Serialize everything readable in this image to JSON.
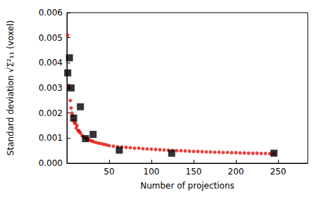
{
  "chart_data": {
    "type": "scatter",
    "x_label": "Number of projections",
    "y_label": "Standard deviation √Σ²₁₁ (voxel)",
    "xlim": [
      0,
      285
    ],
    "xticks": [
      50,
      100,
      150,
      200,
      250
    ],
    "ylim": [
      0,
      0.006
    ],
    "yticks": [
      {
        "value": 0,
        "label": "0.000"
      },
      {
        "value": 0.001,
        "label": "0.001"
      },
      {
        "value": 0.002,
        "label": "0.002"
      },
      {
        "value": 0.003,
        "label": "0.003"
      },
      {
        "value": 0.004,
        "label": "0.004"
      },
      {
        "value": 0.005,
        "label": "0.005"
      },
      {
        "value": 0.006,
        "label": "0.006"
      }
    ],
    "grid": false,
    "series": [
      {
        "color": "#e3120b",
        "marker": "circle",
        "x": [
          1,
          2,
          3,
          4,
          5,
          6,
          7,
          8,
          9,
          10,
          11,
          12,
          13,
          14,
          15,
          16,
          18,
          20,
          22,
          24,
          26,
          28,
          30,
          32,
          35,
          38,
          41,
          44,
          47,
          50,
          55,
          60,
          65,
          70,
          75,
          80,
          85,
          90,
          95,
          100,
          105,
          110,
          115,
          120,
          125,
          130,
          135,
          140,
          145,
          150,
          155,
          160,
          165,
          170,
          175,
          180,
          185,
          190,
          195,
          200,
          205,
          210,
          215,
          220,
          225,
          230,
          235,
          240,
          245
        ],
        "values": [
          0.0051,
          0.0031,
          0.003,
          0.0025,
          0.0022,
          0.002,
          0.0019,
          0.0017,
          0.0016,
          0.0016,
          0.0014,
          0.0015,
          0.0013,
          0.0013,
          0.00125,
          0.0012,
          0.0011,
          0.00105,
          0.001,
          0.00098,
          0.00095,
          0.0009,
          0.00088,
          0.00085,
          0.00082,
          0.0008,
          0.00078,
          0.00075,
          0.00073,
          0.0007,
          0.00068,
          0.00066,
          0.00065,
          0.00063,
          0.00062,
          0.0006,
          0.0006,
          0.00058,
          0.00057,
          0.00056,
          0.00055,
          0.00054,
          0.00053,
          0.00052,
          0.00051,
          0.0005,
          0.0005,
          0.00049,
          0.00048,
          0.00047,
          0.00047,
          0.00046,
          0.00045,
          0.00045,
          0.00044,
          0.00044,
          0.00043,
          0.00043,
          0.00042,
          0.00042,
          0.00041,
          0.00041,
          0.0004,
          0.0004,
          0.0004,
          0.00039,
          0.00039,
          0.00038,
          0.00038
        ]
      },
      {
        "color": "#000000",
        "marker": "square",
        "x": [
          1,
          3,
          5,
          8,
          16,
          22,
          31,
          62,
          124,
          245
        ],
        "values": [
          0.0036,
          0.0042,
          0.003,
          0.0018,
          0.00225,
          0.00098,
          0.00115,
          0.00052,
          0.0004,
          0.0004
        ]
      }
    ]
  }
}
